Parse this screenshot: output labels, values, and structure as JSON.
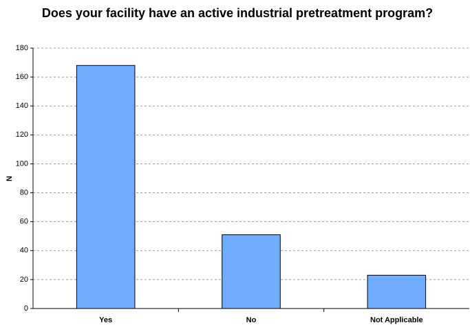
{
  "chart_data": {
    "type": "bar",
    "title": "Does your facility have an active industrial pretreatment program?",
    "y_label": "N",
    "categories": [
      "Yes",
      "No",
      "Not Applicable"
    ],
    "values": [
      168,
      51,
      23
    ],
    "color": "#70acff",
    "ylim": [
      0,
      180
    ],
    "yticks": [
      0,
      20,
      40,
      60,
      80,
      100,
      120,
      140,
      160,
      180
    ],
    "grid": true
  }
}
